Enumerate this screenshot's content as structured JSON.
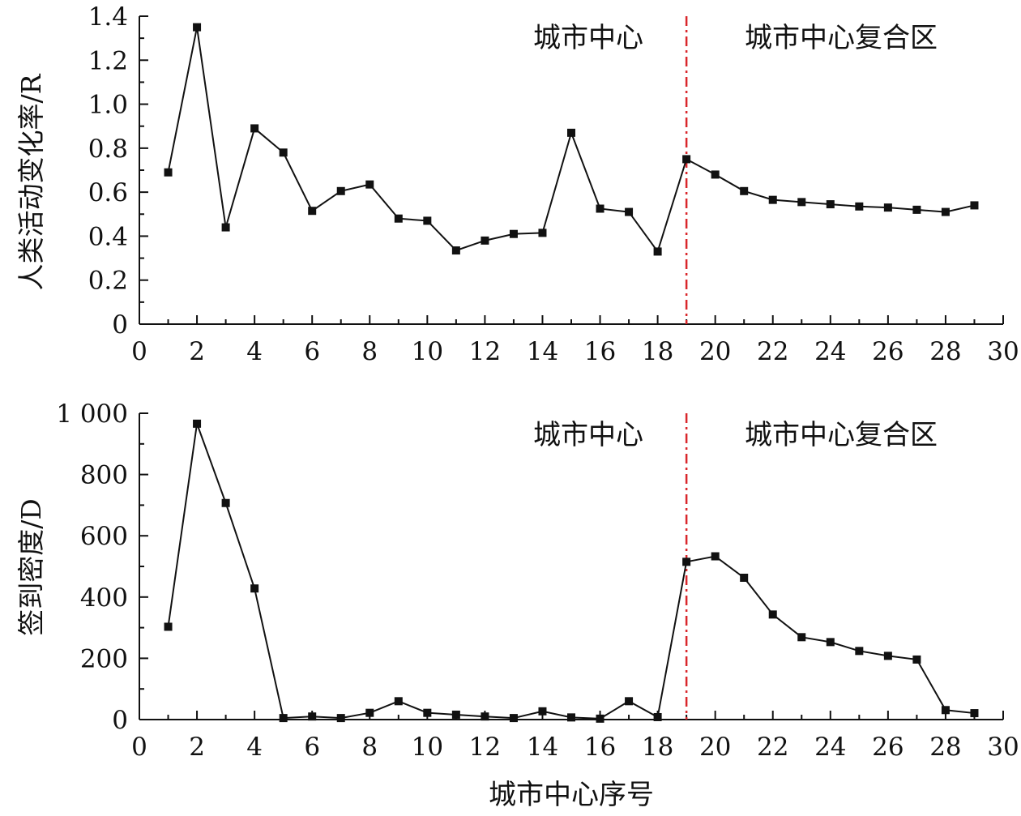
{
  "chart_data": [
    {
      "type": "line",
      "ylabel": "人类活动变化率/R",
      "xlabel": "",
      "xlim": [
        0,
        30
      ],
      "ylim": [
        0,
        1.4
      ],
      "x_ticks": [
        0,
        2,
        4,
        6,
        8,
        10,
        12,
        14,
        16,
        18,
        20,
        22,
        24,
        26,
        28,
        30
      ],
      "y_ticks": [
        0,
        0.2,
        0.4,
        0.6,
        0.8,
        1.0,
        1.2,
        1.4
      ],
      "x_tick_labels": [
        "0",
        "2",
        "4",
        "6",
        "8",
        "10",
        "12",
        "14",
        "16",
        "18",
        "20",
        "22",
        "24",
        "26",
        "28",
        "30"
      ],
      "y_tick_labels": [
        "0",
        "0.2",
        "0.4",
        "0.6",
        "0.8",
        "1.0",
        "1.2",
        "1.4"
      ],
      "x": [
        1,
        2,
        3,
        4,
        5,
        6,
        7,
        8,
        9,
        10,
        11,
        12,
        13,
        14,
        15,
        16,
        17,
        18,
        19,
        20,
        21,
        22,
        23,
        24,
        25,
        26,
        27,
        28,
        29
      ],
      "series": [
        {
          "values": [
            0.69,
            1.35,
            0.44,
            0.89,
            0.78,
            0.515,
            0.605,
            0.635,
            0.48,
            0.47,
            0.335,
            0.38,
            0.41,
            0.415,
            0.87,
            0.525,
            0.51,
            0.33,
            0.75,
            0.68,
            0.605,
            0.565,
            0.555,
            0.545,
            0.535,
            0.53,
            0.52,
            0.51,
            0.54
          ]
        }
      ],
      "divider_x": 19,
      "annotations": [
        "城市中心",
        "城市中心复合区"
      ],
      "grid": false
    },
    {
      "type": "line",
      "ylabel": "签到密度/D",
      "xlabel": "城市中心序号",
      "xlim": [
        0,
        30
      ],
      "ylim": [
        0,
        1000
      ],
      "x_ticks": [
        0,
        2,
        4,
        6,
        8,
        10,
        12,
        14,
        16,
        18,
        20,
        22,
        24,
        26,
        28,
        30
      ],
      "y_ticks": [
        0,
        200,
        400,
        600,
        800,
        1000
      ],
      "x_tick_labels": [
        "0",
        "2",
        "4",
        "6",
        "8",
        "10",
        "12",
        "14",
        "16",
        "18",
        "20",
        "22",
        "24",
        "26",
        "28",
        "30"
      ],
      "y_tick_labels": [
        "0",
        "200",
        "400",
        "600",
        "800",
        "1 000"
      ],
      "x": [
        1,
        2,
        3,
        4,
        5,
        6,
        7,
        8,
        9,
        10,
        11,
        12,
        13,
        14,
        15,
        16,
        17,
        18,
        19,
        20,
        21,
        22,
        23,
        24,
        25,
        26,
        27,
        28,
        29
      ],
      "series": [
        {
          "values": [
            303,
            966,
            707,
            428,
            5,
            10,
            5,
            22,
            60,
            22,
            16,
            10,
            5,
            27,
            7,
            3,
            60,
            8,
            515,
            533,
            463,
            343,
            269,
            253,
            224,
            208,
            196,
            31,
            21
          ]
        }
      ],
      "divider_x": 19,
      "annotations": [
        "城市中心",
        "城市中心复合区"
      ],
      "grid": false
    }
  ],
  "colors": {
    "line": "#111111",
    "marker": "#111111",
    "divider": "#d9262b",
    "axis": "#111111"
  }
}
